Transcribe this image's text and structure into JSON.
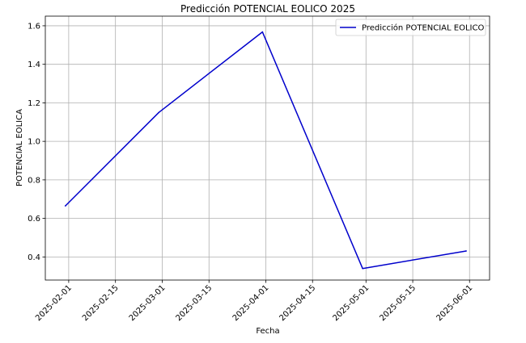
{
  "chart_data": {
    "type": "line",
    "title": "Predicción POTENCIAL EOLICO 2025",
    "xlabel": "Fecha",
    "ylabel": "POTENCIAL EOLICA",
    "x_ticks": [
      "2025-02-01",
      "2025-02-15",
      "2025-03-01",
      "2025-03-15",
      "2025-04-01",
      "2025-04-15",
      "2025-05-01",
      "2025-05-15",
      "2025-06-01"
    ],
    "y_ticks": [
      0.4,
      0.6,
      0.8,
      1.0,
      1.2,
      1.4,
      1.6
    ],
    "y_tick_labels": [
      "0.4",
      "0.6",
      "0.8",
      "1.0",
      "1.2",
      "1.4",
      "1.6"
    ],
    "xlim": [
      "2025-01-25",
      "2025-06-07"
    ],
    "ylim": [
      0.28,
      1.65
    ],
    "grid": true,
    "legend_position": "top-right",
    "series": [
      {
        "name": "Predicción POTENCIAL EOLICO",
        "color": "#0000cc",
        "x": [
          "2025-01-31",
          "2025-02-28",
          "2025-03-31",
          "2025-04-30",
          "2025-05-31"
        ],
        "y": [
          0.665,
          1.15,
          1.568,
          0.34,
          0.431
        ]
      }
    ]
  }
}
